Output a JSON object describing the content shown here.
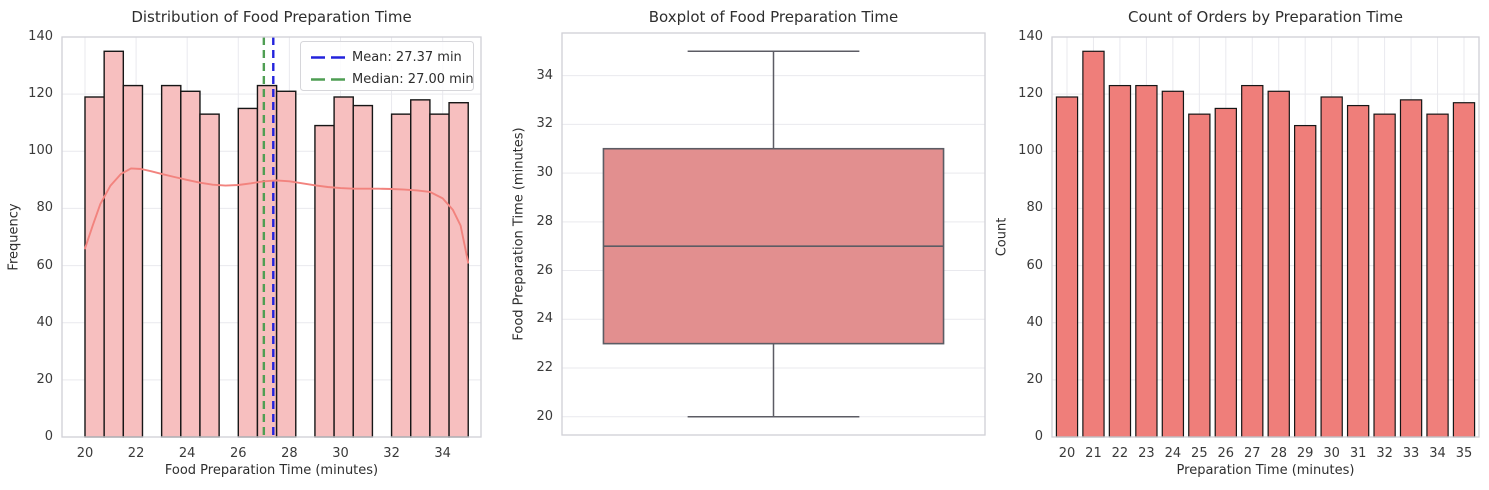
{
  "figure": {
    "bg_color": "#ffffff",
    "grid_color": "#e9e9ee",
    "spine_color": "#d0d0d6",
    "text_color": "#2e2e2e",
    "tick_label_color": "#3a3a3a"
  },
  "chart_data": [
    {
      "id": "histogram",
      "type": "histogram+kde",
      "title": "Distribution of Food Preparation Time",
      "xlabel": "Food Preparation Time (minutes)",
      "ylabel": "Frequency",
      "xlim": [
        19.1,
        35.5
      ],
      "ylim": [
        0,
        140
      ],
      "xticks": [
        20,
        22,
        24,
        26,
        28,
        30,
        32,
        34
      ],
      "yticks": [
        0,
        20,
        40,
        60,
        80,
        100,
        120,
        140
      ],
      "bin_start": 20,
      "bin_width": 0.75,
      "bin_counts": [
        119,
        135,
        123,
        0,
        123,
        121,
        113,
        0,
        115,
        123,
        121,
        0,
        109,
        119,
        116,
        0,
        113,
        118,
        113,
        117
      ],
      "bar_fill": "#f7bfbf",
      "bar_edge": "#161616",
      "kde_color": "#f2837e",
      "kde_x": [
        20,
        20.3,
        20.6,
        21.0,
        21.4,
        21.8,
        22.2,
        22.6,
        23.0,
        23.5,
        24.0,
        24.5,
        25.0,
        25.5,
        26.0,
        26.5,
        27.0,
        27.5,
        28.0,
        28.5,
        29.0,
        29.5,
        30.0,
        30.5,
        31.0,
        31.5,
        32.0,
        32.5,
        33.0,
        33.5,
        34.0,
        34.4,
        34.7,
        35.0
      ],
      "kde_y": [
        66,
        74,
        81.5,
        88,
        92,
        94,
        93.8,
        93,
        92.1,
        91,
        90,
        89,
        88.3,
        88,
        88.2,
        88.8,
        89.5,
        89.8,
        89.5,
        88.8,
        88.1,
        87.5,
        87.1,
        86.9,
        86.9,
        86.9,
        86.8,
        86.6,
        86.3,
        85.8,
        83.5,
        79.5,
        74,
        61
      ],
      "mean_line": {
        "value": 27.37,
        "color": "#2323dc"
      },
      "median_line": {
        "value": 27.0,
        "color": "#4f9e53"
      },
      "legend": [
        "Mean: 27.37 min",
        "Median: 27.00 min"
      ]
    },
    {
      "id": "boxplot",
      "type": "box",
      "title": "Boxplot of Food Preparation Time",
      "ylabel": "Food Preparation Time (minutes)",
      "ylim": [
        19.25,
        35.75
      ],
      "yticks": [
        20,
        22,
        24,
        26,
        28,
        30,
        32,
        34
      ],
      "box": {
        "whisker_low": 20,
        "q1": 23,
        "median": 27,
        "q3": 31,
        "whisker_high": 35
      },
      "fill": "#e28f8f",
      "line_color": "#5c5c64"
    },
    {
      "id": "countplot",
      "type": "bar",
      "title": "Count of Orders by Preparation Time",
      "xlabel": "Preparation Time (minutes)",
      "ylabel": "Count",
      "ylim": [
        0,
        140
      ],
      "yticks": [
        0,
        20,
        40,
        60,
        80,
        100,
        120,
        140
      ],
      "categories": [
        "20",
        "21",
        "22",
        "23",
        "24",
        "25",
        "26",
        "27",
        "28",
        "29",
        "30",
        "31",
        "32",
        "33",
        "34",
        "35"
      ],
      "values": [
        119,
        135,
        123,
        123,
        121,
        113,
        115,
        123,
        121,
        109,
        119,
        116,
        113,
        118,
        113,
        117
      ],
      "bar_fill": "#ef7e7a",
      "bar_edge": "#161616"
    }
  ]
}
